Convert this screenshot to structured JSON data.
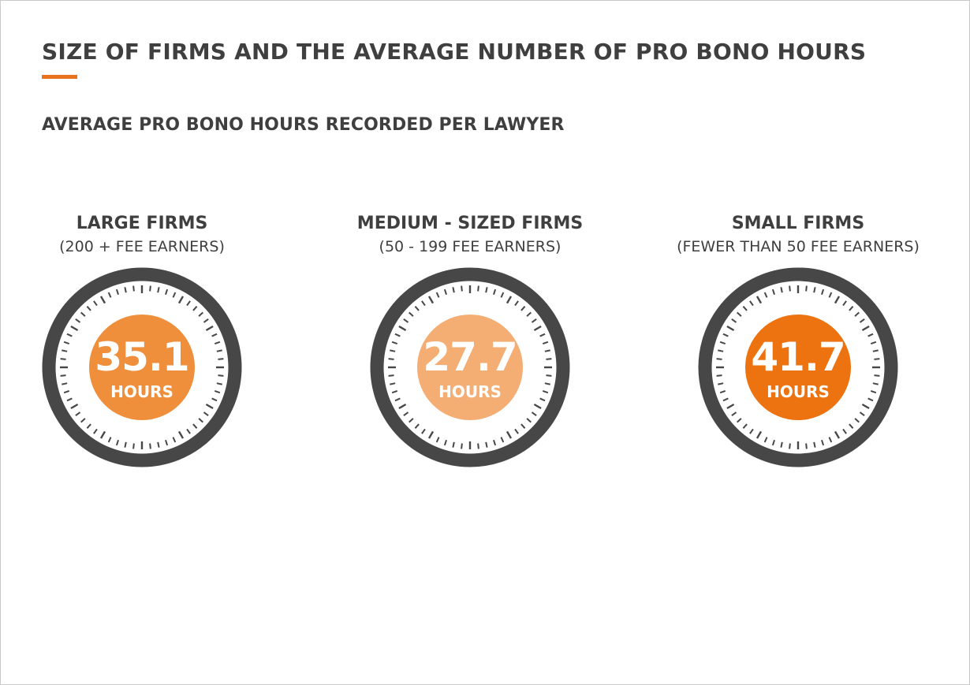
{
  "header": {
    "title": "SIZE OF FIRMS AND THE AVERAGE NUMBER OF PRO BONO HOURS",
    "subtitle": "AVERAGE PRO BONO HOURS RECORDED PER LAWYER"
  },
  "colors": {
    "accent": "#e8731c",
    "text": "#3f3f3f",
    "dial_ring": "#474747",
    "tick": "#474747"
  },
  "gauges": [
    {
      "name": "LARGE FIRMS",
      "desc": "(200 + FEE EARNERS)",
      "value": "35.1",
      "unit": "HOURS",
      "color": "#ef8f3c"
    },
    {
      "name": "MEDIUM - SIZED FIRMS",
      "desc": "(50 - 199 FEE EARNERS)",
      "value": "27.7",
      "unit": "HOURS",
      "color": "#f4ae74"
    },
    {
      "name": "SMALL FIRMS",
      "desc": "(FEWER THAN 50 FEE EARNERS)",
      "value": "41.7",
      "unit": "HOURS",
      "color": "#ec730f"
    }
  ],
  "chart_data": {
    "type": "bar",
    "title": "SIZE OF FIRMS AND THE AVERAGE NUMBER OF PRO BONO HOURS",
    "subtitle": "AVERAGE PRO BONO HOURS RECORDED PER LAWYER",
    "categories": [
      "LARGE FIRMS",
      "MEDIUM - SIZED FIRMS",
      "SMALL FIRMS"
    ],
    "values": [
      35.1,
      27.7,
      41.7
    ],
    "xlabel": "",
    "ylabel": ""
  }
}
